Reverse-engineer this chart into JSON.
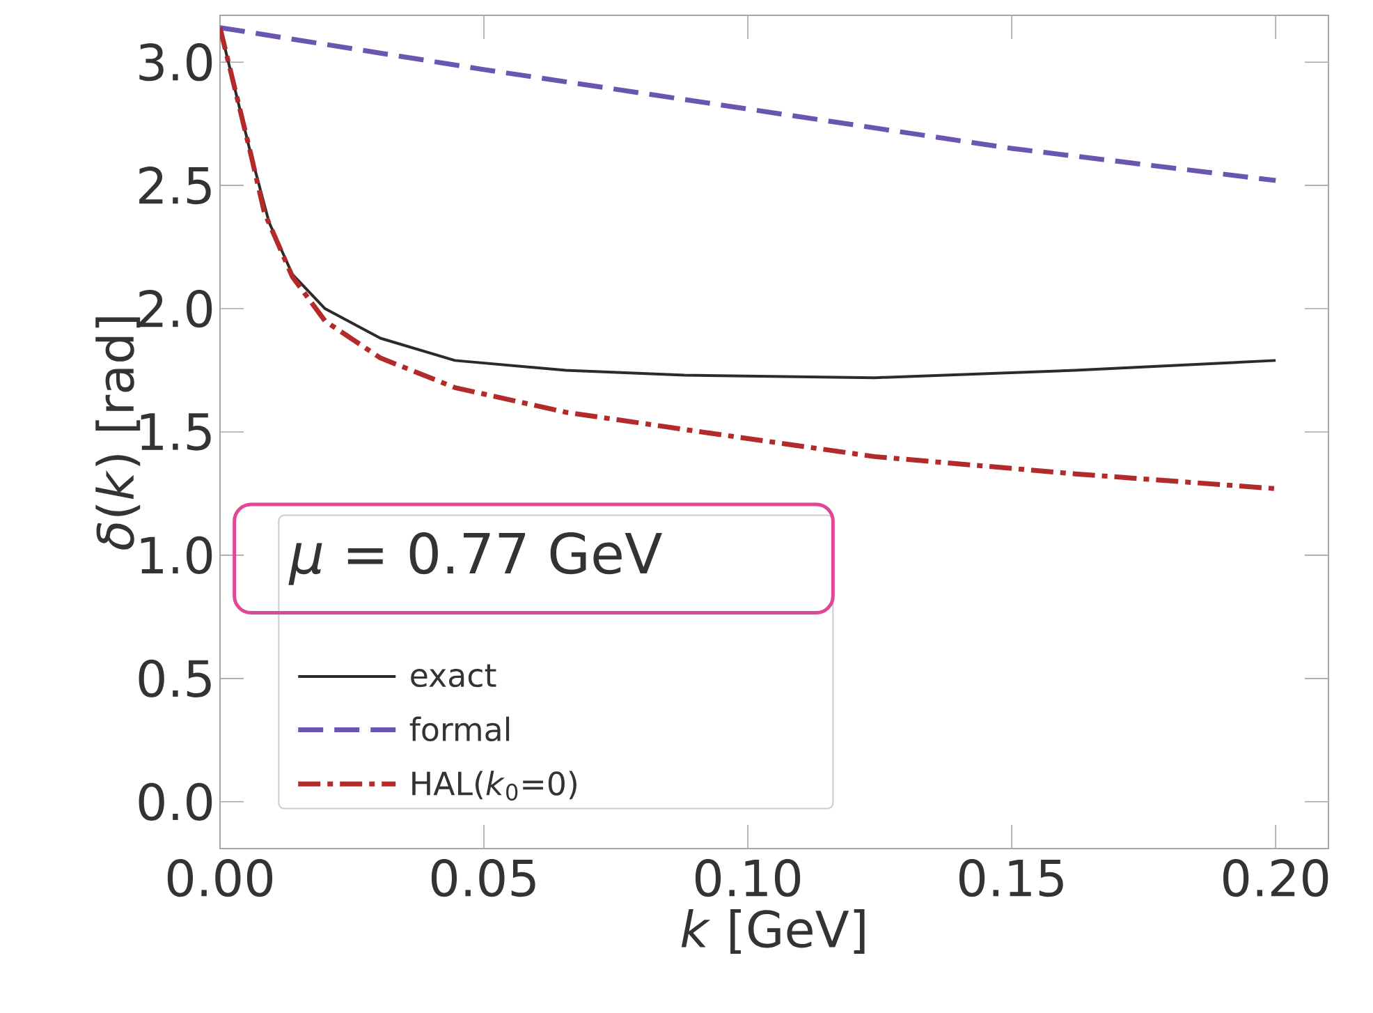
{
  "chart_data": {
    "type": "line",
    "xlabel": "*k* [GeV]",
    "ylabel": "*δ*(*k*) [rad]",
    "legend_title": "*μ* = 0.77 GeV",
    "xlim": [
      0,
      0.21
    ],
    "ylim": [
      -0.19,
      3.19
    ],
    "xticks": [
      {
        "value": 0,
        "label": "0.00"
      },
      {
        "value": 0.05,
        "label": "0.05"
      },
      {
        "value": 0.1,
        "label": "0.10"
      },
      {
        "value": 0.15,
        "label": "0.15"
      },
      {
        "value": 0.2,
        "label": "0.20"
      }
    ],
    "yticks": [
      {
        "value": 0,
        "label": "0.0"
      },
      {
        "value": 0.5,
        "label": "0.5"
      },
      {
        "value": 1,
        "label": "1.0"
      },
      {
        "value": 1.5,
        "label": "1.5"
      },
      {
        "value": 2,
        "label": "2.0"
      },
      {
        "value": 2.5,
        "label": "2.5"
      },
      {
        "value": 3,
        "label": "3.0"
      }
    ],
    "grid": false,
    "legend": "bottom left",
    "series": [
      {
        "name": "exact",
        "color": "#2b2b2b",
        "line_style": "solid",
        "x": [
          0,
          0.0058,
          0.0093,
          0.0137,
          0.0199,
          0.0304,
          0.0445,
          0.0655,
          0.088,
          0.124,
          0.162,
          0.2
        ],
        "values": [
          3.14,
          2.63,
          2.35,
          2.14,
          2.0,
          1.88,
          1.79,
          1.75,
          1.73,
          1.72,
          1.75,
          1.79
        ]
      },
      {
        "name": "formal",
        "color": "#6a55b0",
        "line_style": "dashed",
        "x": [
          0,
          0.05,
          0.1,
          0.15,
          0.2
        ],
        "values": [
          3.14,
          2.97,
          2.81,
          2.65,
          2.52
        ]
      },
      {
        "name": "HAL(*k*$_{0}$=0)",
        "color": "#b22a2a",
        "line_style": "dashdot",
        "x": [
          0,
          0.0058,
          0.0084,
          0.0137,
          0.0199,
          0.0304,
          0.0445,
          0.0655,
          0.088,
          0.124,
          0.162,
          0.2
        ],
        "values": [
          3.14,
          2.63,
          2.39,
          2.13,
          1.95,
          1.8,
          1.68,
          1.58,
          1.51,
          1.4,
          1.33,
          1.27
        ]
      }
    ]
  }
}
